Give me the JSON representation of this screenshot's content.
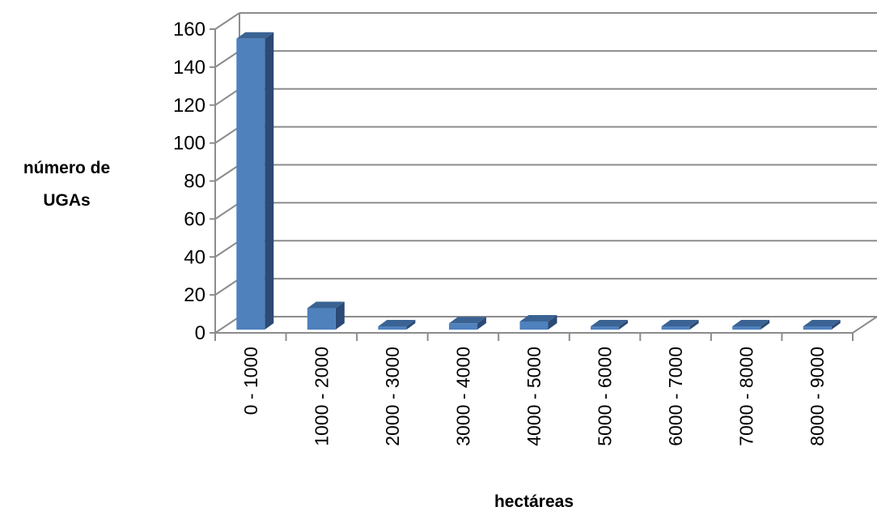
{
  "chart_data": {
    "type": "bar",
    "categories": [
      "0 - 1000",
      "1000 - 2000",
      "2000 - 3000",
      "3000 - 4000",
      "4000 - 5000",
      "5000 - 6000",
      "6000 - 7000",
      "7000 - 8000",
      "8000 - 9000"
    ],
    "values": [
      155,
      13,
      3,
      5,
      6,
      2,
      0,
      0,
      1
    ],
    "xlabel": "hectáreas",
    "ylabel_line1": "número de",
    "ylabel_line2": "UGAs",
    "ylim": [
      0,
      160
    ],
    "yticks": [
      0,
      20,
      40,
      60,
      80,
      100,
      120,
      140,
      160
    ],
    "grid": true,
    "style": "3d",
    "bar_color": "#4F81BD"
  }
}
